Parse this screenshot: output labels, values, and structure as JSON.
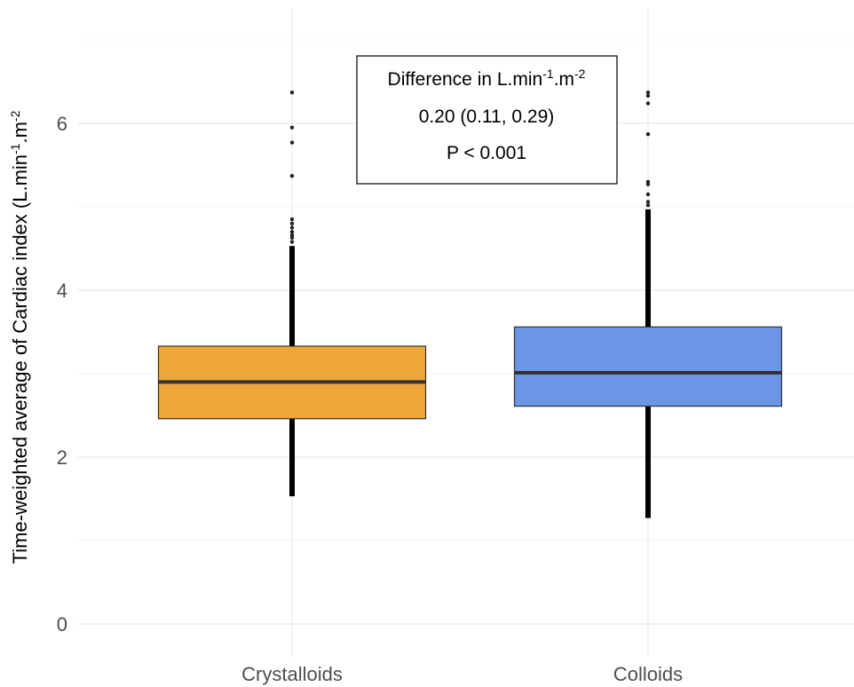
{
  "chart_data": {
    "type": "box",
    "ylabel_main": "Time-weighted average of Cardiac index (L.min",
    "ylabel_sup1": "-1",
    "ylabel_mid": ".m",
    "ylabel_sup2": "-2",
    "ylim": [
      -0.3,
      7.1
    ],
    "yticks": [
      0,
      2,
      4,
      6
    ],
    "ytick_labels": [
      "0",
      "2",
      "4",
      "6"
    ],
    "grid": true,
    "categories": [
      "Crystalloids",
      "Colloids"
    ],
    "boxes": [
      {
        "category": "Crystalloids",
        "color": "#f0a73a",
        "q1": 2.46,
        "median": 2.9,
        "q3": 3.33,
        "whisker_low": 1.53,
        "whisker_high": 4.53,
        "outliers": [
          4.58,
          4.63,
          4.66,
          4.7,
          4.75,
          4.8,
          4.85,
          5.37,
          5.77,
          5.95,
          6.37
        ]
      },
      {
        "category": "Colloids",
        "color": "#6d95e6",
        "q1": 2.61,
        "median": 3.01,
        "q3": 3.56,
        "whisker_low": 1.27,
        "whisker_high": 4.97,
        "outliers": [
          5.02,
          5.06,
          5.15,
          5.27,
          5.3,
          5.87,
          6.24,
          6.33,
          6.37
        ]
      }
    ],
    "annotation": {
      "line1_main": "Difference in L.min",
      "line1_sup1": "-1",
      "line1_mid": ".m",
      "line1_sup2": "-2",
      "line2": "0.20 (0.11, 0.29)",
      "line3": "P < 0.001"
    }
  }
}
